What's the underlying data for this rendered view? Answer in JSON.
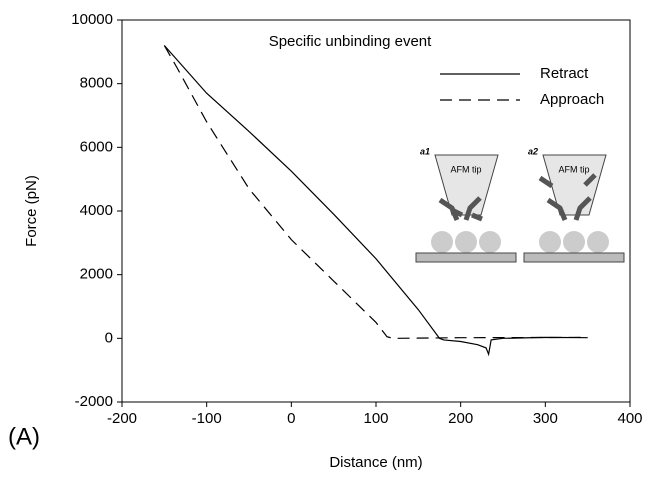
{
  "chart_data": {
    "type": "line",
    "annotations": [
      "Specific unbinding event",
      "(A)"
    ],
    "x_label": "Distance (nm)",
    "y_label": "Force (pN)",
    "xlim": [
      -200,
      400
    ],
    "xticks": [
      -200,
      -100,
      0,
      100,
      200,
      300,
      400
    ],
    "ylim": [
      -2000,
      10000
    ],
    "yticks": [
      -2000,
      0,
      2000,
      4000,
      6000,
      8000,
      10000
    ],
    "series": [
      {
        "name": "Retract",
        "color": "#000000",
        "dash": "none",
        "x": [
          -150,
          -100,
          -50,
          0,
          50,
          100,
          150,
          175,
          180,
          200,
          220,
          230,
          233,
          236,
          250,
          300,
          350
        ],
        "values": [
          9200,
          7700,
          6500,
          5250,
          3900,
          2500,
          900,
          0,
          -50,
          -100,
          -200,
          -300,
          -500,
          -50,
          0,
          30,
          20
        ]
      },
      {
        "name": "Approach",
        "color": "#000000",
        "dash": "12 7",
        "x": [
          -150,
          -135,
          -100,
          -50,
          0,
          50,
          100,
          113,
          120,
          200,
          350
        ],
        "values": [
          9200,
          8500,
          6800,
          4700,
          3100,
          1800,
          500,
          50,
          0,
          20,
          30
        ]
      }
    ],
    "legend": "upper right",
    "inset": [
      {
        "label": "a1",
        "tip": "AFM tip"
      },
      {
        "label": "a2",
        "tip": "AFM tip"
      }
    ]
  }
}
